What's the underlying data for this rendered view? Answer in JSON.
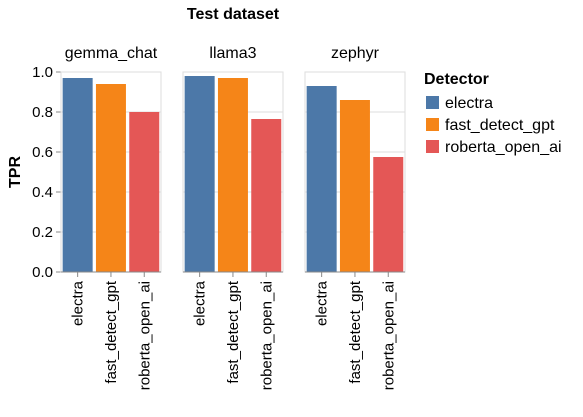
{
  "chart_data": {
    "type": "bar",
    "title": "Test dataset",
    "ylabel": "TPR",
    "ylim": [
      0,
      1
    ],
    "yticks": [
      "0.0",
      "0.2",
      "0.4",
      "0.6",
      "0.8",
      "1.0"
    ],
    "categories": [
      "electra",
      "fast_detect_gpt",
      "roberta_open_ai"
    ],
    "legend": {
      "title": "Detector",
      "placement": "right",
      "entries": [
        "electra",
        "fast_detect_gpt",
        "roberta_open_ai"
      ]
    },
    "colors": {
      "electra": "#4c78a8",
      "fast_detect_gpt": "#f58518",
      "roberta_open_ai": "#e45756"
    },
    "facets": [
      {
        "name": "gemma_chat",
        "values": [
          0.97,
          0.94,
          0.8
        ]
      },
      {
        "name": "llama3",
        "values": [
          0.98,
          0.97,
          0.765
        ]
      },
      {
        "name": "zephyr",
        "values": [
          0.93,
          0.86,
          0.575
        ]
      }
    ]
  }
}
